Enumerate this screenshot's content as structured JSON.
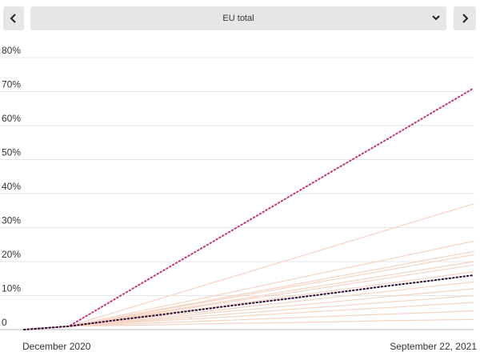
{
  "selector": {
    "value": "EU total"
  },
  "chart_data": {
    "type": "line",
    "categories": [
      "December 2020",
      null,
      null,
      null,
      null,
      null,
      null,
      null,
      null,
      null,
      "September 22, 2021"
    ],
    "ylim": [
      0,
      80
    ],
    "yticks": [
      0,
      {
        "value": 10,
        "label": "10%"
      },
      {
        "value": 20,
        "label": "20%"
      },
      {
        "value": 30,
        "label": "30%"
      },
      {
        "value": 40,
        "label": "40%"
      },
      {
        "value": 50,
        "label": "50%"
      },
      {
        "value": 60,
        "label": "60%"
      },
      {
        "value": 70,
        "label": "70%"
      },
      {
        "value": 80,
        "label": "80%"
      }
    ],
    "grid": true,
    "series": [
      {
        "color": "#f6d3c3",
        "dash": "solid",
        "values": [
          0,
          1,
          5,
          9,
          13,
          17,
          21,
          25,
          29,
          33,
          37
        ]
      },
      {
        "color": "#f6d3c3",
        "dash": "solid",
        "values": [
          0,
          1,
          3.8,
          6.6,
          9.3,
          12.1,
          14.9,
          17.7,
          20.4,
          23.2,
          26
        ]
      },
      {
        "color": "#f6d3c3",
        "dash": "solid",
        "values": [
          0,
          1,
          3.4,
          5.9,
          8.3,
          10.8,
          13.2,
          15.7,
          18.1,
          20.6,
          23
        ]
      },
      {
        "color": "#f6d3c3",
        "dash": "solid",
        "values": [
          0,
          1,
          3.3,
          5.7,
          8,
          10.3,
          12.7,
          15,
          17.3,
          19.7,
          22
        ]
      },
      {
        "color": "#f6d3c3",
        "dash": "solid",
        "values": [
          0,
          1,
          3.1,
          5.2,
          7.3,
          9.4,
          11.6,
          13.7,
          15.8,
          17.9,
          20
        ]
      },
      {
        "color": "#f6d3c3",
        "dash": "solid",
        "values": [
          0,
          1,
          3,
          5,
          7,
          9,
          11,
          13,
          15,
          17,
          19
        ]
      },
      {
        "color": "#f6d3c3",
        "dash": "solid",
        "values": [
          0,
          1,
          2.8,
          4.6,
          6.3,
          8.1,
          9.9,
          11.7,
          13.4,
          15.2,
          17
        ]
      },
      {
        "color": "#f6d3c3",
        "dash": "solid",
        "values": [
          0,
          1,
          2.4,
          3.9,
          5.3,
          6.8,
          8.2,
          9.7,
          11.1,
          12.6,
          14
        ]
      },
      {
        "color": "#f6d3c3",
        "dash": "solid",
        "values": [
          0,
          1,
          2.2,
          3.4,
          4.7,
          5.9,
          7.1,
          8.3,
          9.6,
          10.8,
          12
        ]
      },
      {
        "color": "#f6d3c3",
        "dash": "solid",
        "values": [
          0,
          1,
          2,
          3,
          4,
          5,
          6,
          7,
          8,
          9,
          10
        ]
      },
      {
        "color": "#f6d3c3",
        "dash": "solid",
        "values": [
          0,
          1,
          1.8,
          2.6,
          3.3,
          4.1,
          4.9,
          5.7,
          6.4,
          7.2,
          8
        ]
      },
      {
        "color": "#f6d3c3",
        "dash": "solid",
        "values": [
          0,
          1,
          1.5,
          2,
          2.5,
          3,
          3.5,
          4,
          4.5,
          5,
          5.5
        ]
      },
      {
        "color": "#f6d3c3",
        "dash": "solid",
        "values": [
          0,
          1,
          1.2,
          1.4,
          1.7,
          1.9,
          2.1,
          2.3,
          2.6,
          2.8,
          3
        ]
      },
      {
        "color": "#c2357a",
        "dash": "dotted",
        "values": [
          0,
          1,
          8.8,
          16.6,
          24.3,
          32.1,
          39.9,
          47.7,
          55.4,
          63.2,
          71
        ]
      },
      {
        "color": "#2a0a2e",
        "dash": "dotted",
        "values": [
          0,
          1,
          2.7,
          4.3,
          6,
          7.7,
          9.3,
          11,
          12.7,
          14.3,
          16
        ]
      }
    ]
  }
}
